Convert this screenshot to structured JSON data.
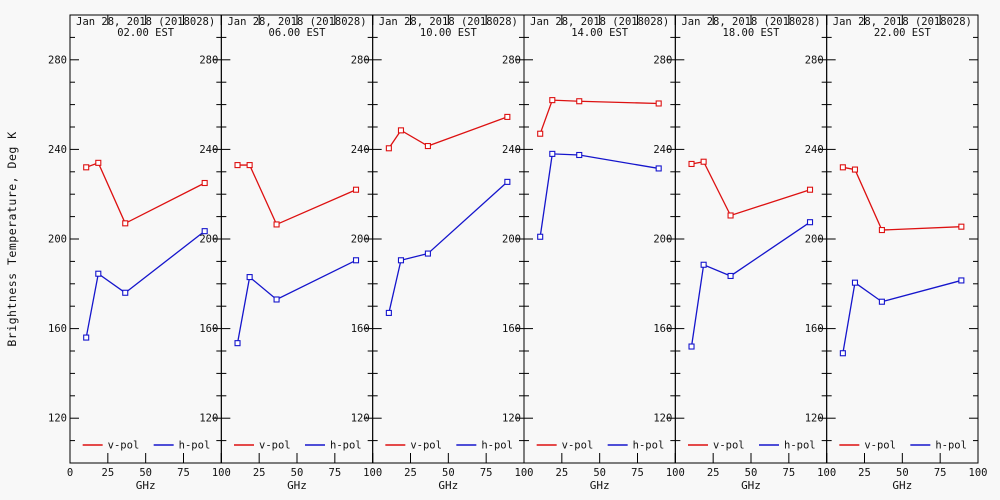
{
  "figure": {
    "ylabel": "Brightness Temperature, Deg K",
    "xlabel": "GHz",
    "background": "#f8f8f8",
    "axis_color": "#000000",
    "vpol_color": "#dd1111",
    "hpol_color": "#1515cc",
    "legend": {
      "vpol_label": "v-pol",
      "hpol_label": "h-pol",
      "position": "bottom-inside-each-panel"
    }
  },
  "chart_data": [
    {
      "type": "line",
      "title": "Jan 28, 2018 (2018028)",
      "subtitle": "02.00 EST",
      "xlabel": "GHz",
      "x": [
        10.7,
        18.7,
        36.5,
        89.0
      ],
      "xlim": [
        0,
        100
      ],
      "ylim": [
        100,
        300
      ],
      "xticks": [
        0,
        25,
        50,
        75,
        100
      ],
      "yticks": [
        120,
        160,
        200,
        240,
        280
      ],
      "grid": false,
      "series": [
        {
          "name": "v-pol",
          "color": "#dd1111",
          "values": [
            232,
            234,
            207,
            225
          ]
        },
        {
          "name": "h-pol",
          "color": "#1515cc",
          "values": [
            156,
            184.5,
            176,
            203.5
          ]
        }
      ]
    },
    {
      "type": "line",
      "title": "Jan 28, 2018 (2018028)",
      "subtitle": "06.00 EST",
      "xlabel": "GHz",
      "x": [
        10.7,
        18.7,
        36.5,
        89.0
      ],
      "xlim": [
        0,
        100
      ],
      "ylim": [
        100,
        300
      ],
      "xticks": [
        0,
        25,
        50,
        75,
        100
      ],
      "yticks": [
        120,
        160,
        200,
        240,
        280
      ],
      "grid": false,
      "series": [
        {
          "name": "v-pol",
          "color": "#dd1111",
          "values": [
            233,
            233,
            206.5,
            222
          ]
        },
        {
          "name": "h-pol",
          "color": "#1515cc",
          "values": [
            153.5,
            183,
            173,
            190.5
          ]
        }
      ]
    },
    {
      "type": "line",
      "title": "Jan 28, 2018 (2018028)",
      "subtitle": "10.00 EST",
      "xlabel": "GHz",
      "x": [
        10.7,
        18.7,
        36.5,
        89.0
      ],
      "xlim": [
        0,
        100
      ],
      "ylim": [
        100,
        300
      ],
      "xticks": [
        0,
        25,
        50,
        75,
        100
      ],
      "yticks": [
        120,
        160,
        200,
        240,
        280
      ],
      "grid": false,
      "series": [
        {
          "name": "v-pol",
          "color": "#dd1111",
          "values": [
            240.5,
            248.5,
            241.5,
            254.5
          ]
        },
        {
          "name": "h-pol",
          "color": "#1515cc",
          "values": [
            167,
            190.5,
            193.5,
            225.5
          ]
        }
      ]
    },
    {
      "type": "line",
      "title": "Jan 28, 2018 (2018028)",
      "subtitle": "14.00 EST",
      "xlabel": "GHz",
      "x": [
        10.7,
        18.7,
        36.5,
        89.0
      ],
      "xlim": [
        0,
        100
      ],
      "ylim": [
        100,
        300
      ],
      "xticks": [
        0,
        25,
        50,
        75,
        100
      ],
      "yticks": [
        120,
        160,
        200,
        240,
        280
      ],
      "grid": false,
      "series": [
        {
          "name": "v-pol",
          "color": "#dd1111",
          "values": [
            247,
            262,
            261.5,
            260.5
          ]
        },
        {
          "name": "h-pol",
          "color": "#1515cc",
          "values": [
            201,
            238,
            237.5,
            231.5
          ]
        }
      ]
    },
    {
      "type": "line",
      "title": "Jan 28, 2018 (2018028)",
      "subtitle": "18.00 EST",
      "xlabel": "GHz",
      "x": [
        10.7,
        18.7,
        36.5,
        89.0
      ],
      "xlim": [
        0,
        100
      ],
      "ylim": [
        100,
        300
      ],
      "xticks": [
        0,
        25,
        50,
        75,
        100
      ],
      "yticks": [
        120,
        160,
        200,
        240,
        280
      ],
      "grid": false,
      "series": [
        {
          "name": "v-pol",
          "color": "#dd1111",
          "values": [
            233.5,
            234.5,
            210.5,
            222
          ]
        },
        {
          "name": "h-pol",
          "color": "#1515cc",
          "values": [
            152,
            188.5,
            183.5,
            207.5
          ]
        }
      ]
    },
    {
      "type": "line",
      "title": "Jan 28, 2018 (2018028)",
      "subtitle": "22.00 EST",
      "xlabel": "GHz",
      "x": [
        10.7,
        18.7,
        36.5,
        89.0
      ],
      "xlim": [
        0,
        100
      ],
      "ylim": [
        100,
        300
      ],
      "xticks": [
        0,
        25,
        50,
        75,
        100
      ],
      "yticks": [
        120,
        160,
        200,
        240,
        280
      ],
      "grid": false,
      "series": [
        {
          "name": "v-pol",
          "color": "#dd1111",
          "values": [
            232,
            231,
            204,
            205.5
          ]
        },
        {
          "name": "h-pol",
          "color": "#1515cc",
          "values": [
            149,
            180.5,
            172,
            181.5
          ]
        }
      ]
    }
  ]
}
